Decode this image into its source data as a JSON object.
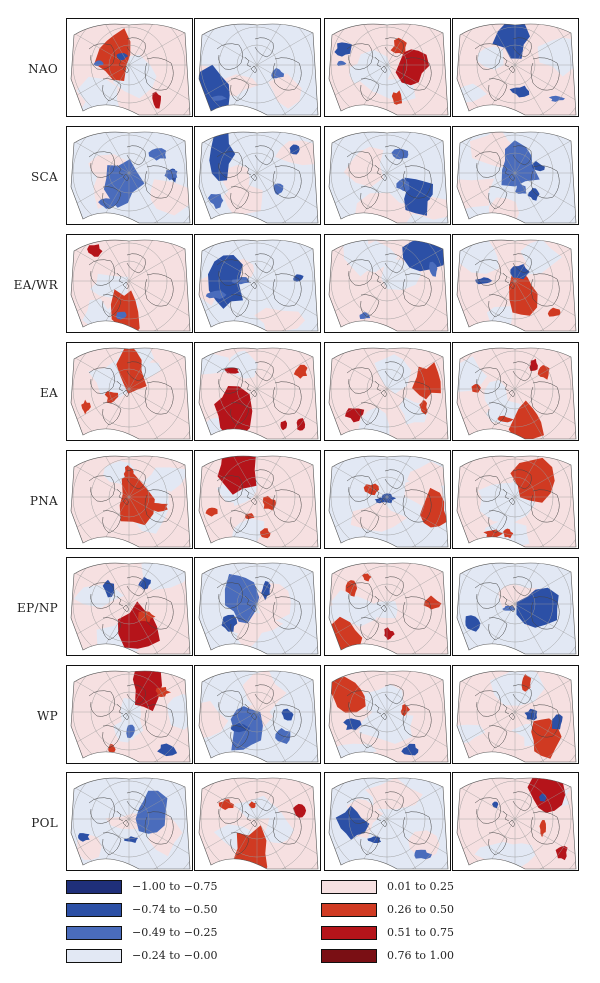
{
  "row_labels": [
    "NAO",
    "SCA",
    "EA/WR",
    "EA",
    "PNA",
    "EP/NP",
    "WP",
    "POL"
  ],
  "column_count": 4,
  "legend": [
    {
      "label": "−1.00 to −0.75",
      "color": "#1f2f7a"
    },
    {
      "label": "−0.74 to −0.50",
      "color": "#2c50a6"
    },
    {
      "label": "−0.49 to −0.25",
      "color": "#4a6cbc"
    },
    {
      "label": "−0.24 to −0.00",
      "color": "#e2e8f4"
    },
    {
      "label": "0.01 to 0.25",
      "color": "#f6e0e1"
    },
    {
      "label": "0.26 to 0.50",
      "color": "#d03a22"
    },
    {
      "label": "0.51 to 0.75",
      "color": "#b5141a"
    },
    {
      "label": "0.76 to 1.00",
      "color": "#7a0f14"
    }
  ]
}
